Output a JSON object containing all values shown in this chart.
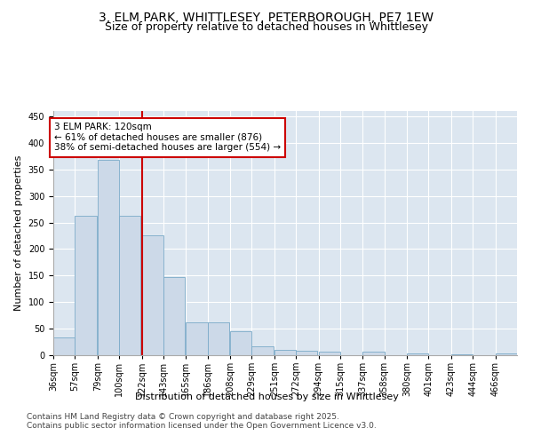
{
  "title_line1": "3, ELM PARK, WHITTLESEY, PETERBOROUGH, PE7 1EW",
  "title_line2": "Size of property relative to detached houses in Whittlesey",
  "xlabel": "Distribution of detached houses by size in Whittlesey",
  "ylabel": "Number of detached properties",
  "bar_color": "#ccd9e8",
  "bar_edge_color": "#7aaac8",
  "background_color": "#dce6f0",
  "vline_x": 122,
  "vline_color": "#cc0000",
  "annotation_text": "3 ELM PARK: 120sqm\n← 61% of detached houses are smaller (876)\n38% of semi-detached houses are larger (554) →",
  "annotation_box_color": "white",
  "annotation_box_edge": "#cc0000",
  "bins": [
    36,
    57,
    79,
    100,
    122,
    143,
    165,
    186,
    208,
    229,
    251,
    272,
    294,
    315,
    337,
    358,
    380,
    401,
    423,
    444,
    466
  ],
  "values": [
    33,
    263,
    368,
    263,
    226,
    148,
    62,
    62,
    46,
    17,
    10,
    9,
    6,
    0,
    6,
    0,
    3,
    0,
    2,
    0,
    3
  ],
  "bin_width": 21,
  "ylim": [
    0,
    460
  ],
  "yticks": [
    0,
    50,
    100,
    150,
    200,
    250,
    300,
    350,
    400,
    450
  ],
  "footer_text": "Contains HM Land Registry data © Crown copyright and database right 2025.\nContains public sector information licensed under the Open Government Licence v3.0.",
  "title_fontsize": 10,
  "subtitle_fontsize": 9,
  "axis_label_fontsize": 8,
  "tick_fontsize": 7,
  "annotation_fontsize": 7.5,
  "footer_fontsize": 6.5
}
